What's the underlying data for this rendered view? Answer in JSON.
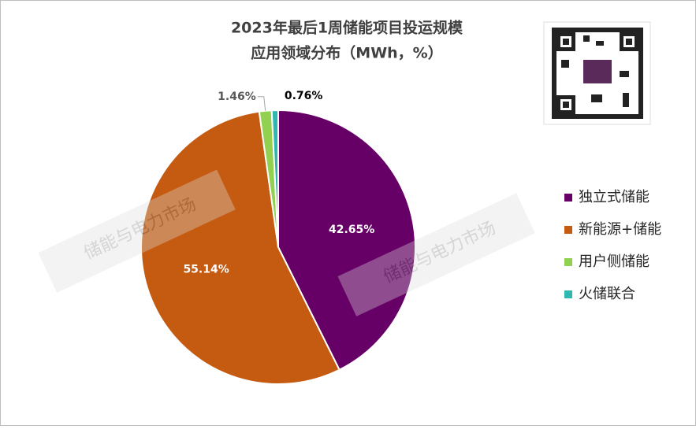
{
  "chart_data": {
    "type": "pie",
    "title": [
      "2023年最后1周储能项目投运规模",
      "应用领域分布（MWh，%）"
    ],
    "categories": [
      "独立式储能",
      "新能源+储能",
      "用户侧储能",
      "火储联合"
    ],
    "values": [
      42.65,
      55.14,
      1.46,
      0.76
    ],
    "value_labels": [
      "42.65%",
      "55.14%",
      "1.46%",
      "0.76%"
    ],
    "colors": [
      "#660066",
      "#c55a11",
      "#92d050",
      "#2eb8b0"
    ],
    "legend": "right",
    "watermark": "储能与电力市场"
  }
}
